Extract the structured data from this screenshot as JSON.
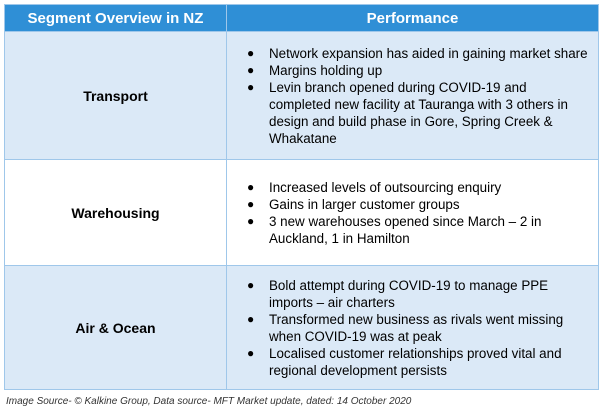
{
  "table": {
    "headers": [
      "Segment Overview in NZ",
      "Performance"
    ],
    "rows": [
      {
        "segment": "Transport",
        "points": [
          "Network expansion has aided in gaining market share",
          "Margins holding up",
          "Levin branch opened during COVID-19 and completed new facility at Tauranga with 3 others in design and build phase in Gore, Spring Creek & Whakatane"
        ]
      },
      {
        "segment": "Warehousing",
        "points": [
          "Increased levels of outsourcing enquiry",
          "Gains in larger customer groups",
          "3 new warehouses opened since March – 2 in Auckland, 1 in Hamilton"
        ]
      },
      {
        "segment": "Air & Ocean",
        "points": [
          "Bold attempt during COVID-19 to manage PPE imports – air charters",
          "Transformed new business as rivals went missing when COVID-19 was at peak",
          "Localised customer relationships proved vital and regional development persists"
        ]
      }
    ]
  },
  "source": "Image Source- © Kalkine Group, Data source- MFT Market update, dated: 14 October 2020",
  "colors": {
    "header_bg": "#2f8fd6",
    "alt_row_bg": "#dbe9f7",
    "border": "#9fc7ea"
  }
}
